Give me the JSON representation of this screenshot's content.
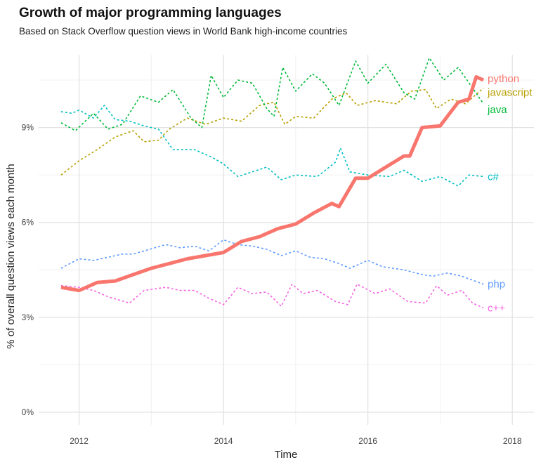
{
  "chart_data": {
    "type": "line",
    "title": "Growth of major programming languages",
    "subtitle": "Based on Stack Overflow question views in World Bank high-income countries",
    "xlabel": "Time",
    "ylabel": "% of overall question views each month",
    "xlim": [
      2011.44,
      2018.3
    ],
    "ylim": [
      -0.4,
      11.3
    ],
    "x_ticks": [
      2012,
      2014,
      2016,
      2018
    ],
    "x_tick_labels": [
      "2012",
      "2014",
      "2016",
      "2018"
    ],
    "y_ticks": [
      0,
      3,
      6,
      9
    ],
    "y_tick_labels": [
      "0%",
      "3%",
      "6%",
      "9%"
    ],
    "grid": true,
    "legend": "direct labels at line ends (right)",
    "series": [
      {
        "name": "python",
        "color": "#F8766D",
        "style": "solid-thick",
        "x": [
          2011.75,
          2012.0,
          2012.25,
          2012.5,
          2012.75,
          2013.0,
          2013.25,
          2013.5,
          2013.75,
          2014.0,
          2014.25,
          2014.5,
          2014.75,
          2015.0,
          2015.25,
          2015.5,
          2015.6,
          2015.83,
          2016.0,
          2016.25,
          2016.5,
          2016.58,
          2016.75,
          2017.0,
          2017.25,
          2017.4,
          2017.5,
          2017.6
        ],
        "y": [
          3.95,
          3.85,
          4.1,
          4.15,
          4.35,
          4.55,
          4.7,
          4.85,
          4.95,
          5.05,
          5.4,
          5.55,
          5.8,
          5.95,
          6.3,
          6.6,
          6.5,
          7.4,
          7.4,
          7.75,
          8.1,
          8.1,
          9.0,
          9.05,
          9.8,
          9.9,
          10.6,
          10.5
        ]
      },
      {
        "name": "javascript",
        "color": "#B79F00",
        "style": "dashed",
        "x": [
          2011.75,
          2012.0,
          2012.25,
          2012.5,
          2012.75,
          2012.9,
          2013.1,
          2013.25,
          2013.5,
          2013.75,
          2014.0,
          2014.25,
          2014.5,
          2014.7,
          2014.85,
          2015.0,
          2015.25,
          2015.5,
          2015.7,
          2015.85,
          2016.1,
          2016.4,
          2016.6,
          2016.8,
          2016.95,
          2017.15,
          2017.35,
          2017.6
        ],
        "y": [
          7.5,
          7.95,
          8.3,
          8.7,
          8.9,
          8.55,
          8.6,
          8.95,
          9.3,
          9.1,
          9.3,
          9.2,
          9.7,
          9.8,
          9.1,
          9.35,
          9.3,
          9.9,
          10.1,
          9.7,
          9.85,
          9.75,
          10.15,
          10.2,
          9.6,
          9.9,
          9.75,
          10.25
        ]
      },
      {
        "name": "java",
        "color": "#00BA38",
        "style": "dashed",
        "x": [
          2011.75,
          2011.95,
          2012.2,
          2012.4,
          2012.6,
          2012.85,
          2013.1,
          2013.3,
          2013.55,
          2013.7,
          2013.83,
          2014.0,
          2014.2,
          2014.4,
          2014.6,
          2014.7,
          2014.82,
          2015.0,
          2015.23,
          2015.4,
          2015.6,
          2015.83,
          2016.0,
          2016.25,
          2016.5,
          2016.65,
          2016.85,
          2017.05,
          2017.25,
          2017.45,
          2017.6
        ],
        "y": [
          9.15,
          8.9,
          9.45,
          8.95,
          9.1,
          10.0,
          9.8,
          10.2,
          9.3,
          9.0,
          10.65,
          9.95,
          10.5,
          10.4,
          9.6,
          9.35,
          10.9,
          10.15,
          10.7,
          10.4,
          9.7,
          11.1,
          10.4,
          11.0,
          10.1,
          9.9,
          11.2,
          10.5,
          10.9,
          10.25,
          9.75
        ]
      },
      {
        "name": "c#",
        "color": "#00BFC4",
        "style": "dashed",
        "x": [
          2011.75,
          2011.9,
          2012.0,
          2012.2,
          2012.35,
          2012.5,
          2012.7,
          2012.9,
          2013.1,
          2013.3,
          2013.6,
          2013.85,
          2014.0,
          2014.2,
          2014.4,
          2014.6,
          2014.8,
          2015.0,
          2015.3,
          2015.55,
          2015.62,
          2015.75,
          2016.0,
          2016.3,
          2016.5,
          2016.75,
          2017.0,
          2017.25,
          2017.4,
          2017.6
        ],
        "y": [
          9.5,
          9.45,
          9.55,
          9.3,
          9.7,
          9.25,
          9.2,
          9.05,
          8.95,
          8.3,
          8.3,
          8.05,
          7.85,
          7.45,
          7.6,
          7.75,
          7.35,
          7.5,
          7.45,
          7.9,
          8.35,
          7.6,
          7.5,
          7.45,
          7.65,
          7.3,
          7.45,
          7.15,
          7.5,
          7.45
        ]
      },
      {
        "name": "php",
        "color": "#619CFF",
        "style": "dashed",
        "x": [
          2011.75,
          2012.0,
          2012.2,
          2012.4,
          2012.6,
          2012.75,
          2012.9,
          2013.2,
          2013.4,
          2013.6,
          2013.8,
          2014.0,
          2014.2,
          2014.4,
          2014.6,
          2014.8,
          2015.0,
          2015.2,
          2015.4,
          2015.6,
          2015.75,
          2016.0,
          2016.2,
          2016.5,
          2016.75,
          2016.9,
          2017.1,
          2017.3,
          2017.6
        ],
        "y": [
          4.55,
          4.85,
          4.8,
          4.9,
          5.0,
          5.0,
          5.1,
          5.3,
          5.2,
          5.25,
          5.1,
          5.45,
          5.3,
          5.25,
          5.15,
          4.95,
          5.1,
          4.9,
          4.85,
          4.7,
          4.55,
          4.8,
          4.6,
          4.5,
          4.35,
          4.3,
          4.4,
          4.3,
          4.05
        ]
      },
      {
        "name": "c++",
        "color": "#F564E3",
        "style": "dashed",
        "x": [
          2011.75,
          2012.0,
          2012.2,
          2012.4,
          2012.7,
          2012.9,
          2013.2,
          2013.4,
          2013.6,
          2013.8,
          2014.0,
          2014.2,
          2014.4,
          2014.6,
          2014.8,
          2014.95,
          2015.1,
          2015.3,
          2015.55,
          2015.72,
          2015.85,
          2016.1,
          2016.3,
          2016.55,
          2016.8,
          2016.95,
          2017.1,
          2017.3,
          2017.45,
          2017.6
        ],
        "y": [
          4.0,
          3.95,
          3.85,
          3.65,
          3.45,
          3.85,
          3.95,
          3.85,
          3.85,
          3.6,
          3.4,
          3.95,
          3.75,
          3.8,
          3.35,
          4.05,
          3.75,
          3.85,
          3.5,
          3.4,
          4.05,
          3.75,
          3.9,
          3.5,
          3.45,
          4.0,
          3.7,
          3.85,
          3.45,
          3.3
        ]
      }
    ]
  }
}
